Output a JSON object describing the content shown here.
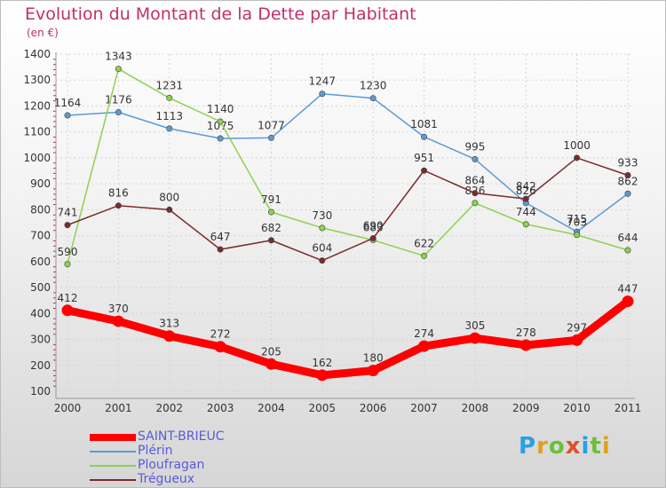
{
  "title": "Evolution du Montant de la Dette par Habitant",
  "subtitle": "(en €)",
  "logo_text": "Proxiti",
  "logo_colors": [
    "#2aa0e0",
    "#e0a020",
    "#6cbf3a",
    "#e2502a",
    "#2aa0e0",
    "#6cbf3a",
    "#e0a020"
  ],
  "chart_data": {
    "type": "line",
    "x": [
      "2000",
      "2001",
      "2002",
      "2003",
      "2004",
      "2005",
      "2006",
      "2007",
      "2008",
      "2009",
      "2010",
      "2011"
    ],
    "ylim": [
      100,
      1400
    ],
    "yticks": [
      "100",
      "200",
      "300",
      "400",
      "500",
      "600",
      "700",
      "800",
      "900",
      "1000",
      "1100",
      "1200",
      "1300",
      "1400"
    ],
    "grid": true,
    "legend_position": "bottom-left",
    "series": [
      {
        "name": "SAINT-BRIEUC",
        "color": "#ff0000",
        "values": [
          412,
          370,
          313,
          272,
          205,
          162,
          180,
          274,
          305,
          278,
          297,
          447
        ],
        "labels": [
          "412",
          "370",
          "313",
          "272",
          "205",
          "162",
          "180",
          "274",
          "305",
          "278",
          "297",
          "447"
        ]
      },
      {
        "name": "Plérin",
        "color": "#5b9bd5",
        "values": [
          1164,
          1176,
          1113,
          1075,
          1077,
          1247,
          1230,
          1081,
          995,
          826,
          715,
          862
        ],
        "labels": [
          "1164",
          "1176",
          "1113",
          "1075",
          "1077",
          "1247",
          "1230",
          "1081",
          "995",
          "826",
          "715",
          "862"
        ]
      },
      {
        "name": "Ploufragan",
        "color": "#8fd14f",
        "values": [
          590,
          1343,
          1231,
          1140,
          791,
          730,
          683,
          622,
          826,
          744,
          703,
          644
        ],
        "labels": [
          "590",
          "1343",
          "1231",
          "1140",
          "791",
          "730",
          "683",
          "622",
          "826",
          "744",
          "703",
          "644"
        ]
      },
      {
        "name": "Trégueux",
        "color": "#7a2b2b",
        "values": [
          741,
          816,
          800,
          647,
          682,
          604,
          690,
          951,
          864,
          842,
          1000,
          933
        ],
        "labels": [
          "741",
          "816",
          "800",
          "647",
          "682",
          "604",
          "690",
          "951",
          "864",
          "842",
          "1000",
          "933"
        ]
      }
    ]
  }
}
